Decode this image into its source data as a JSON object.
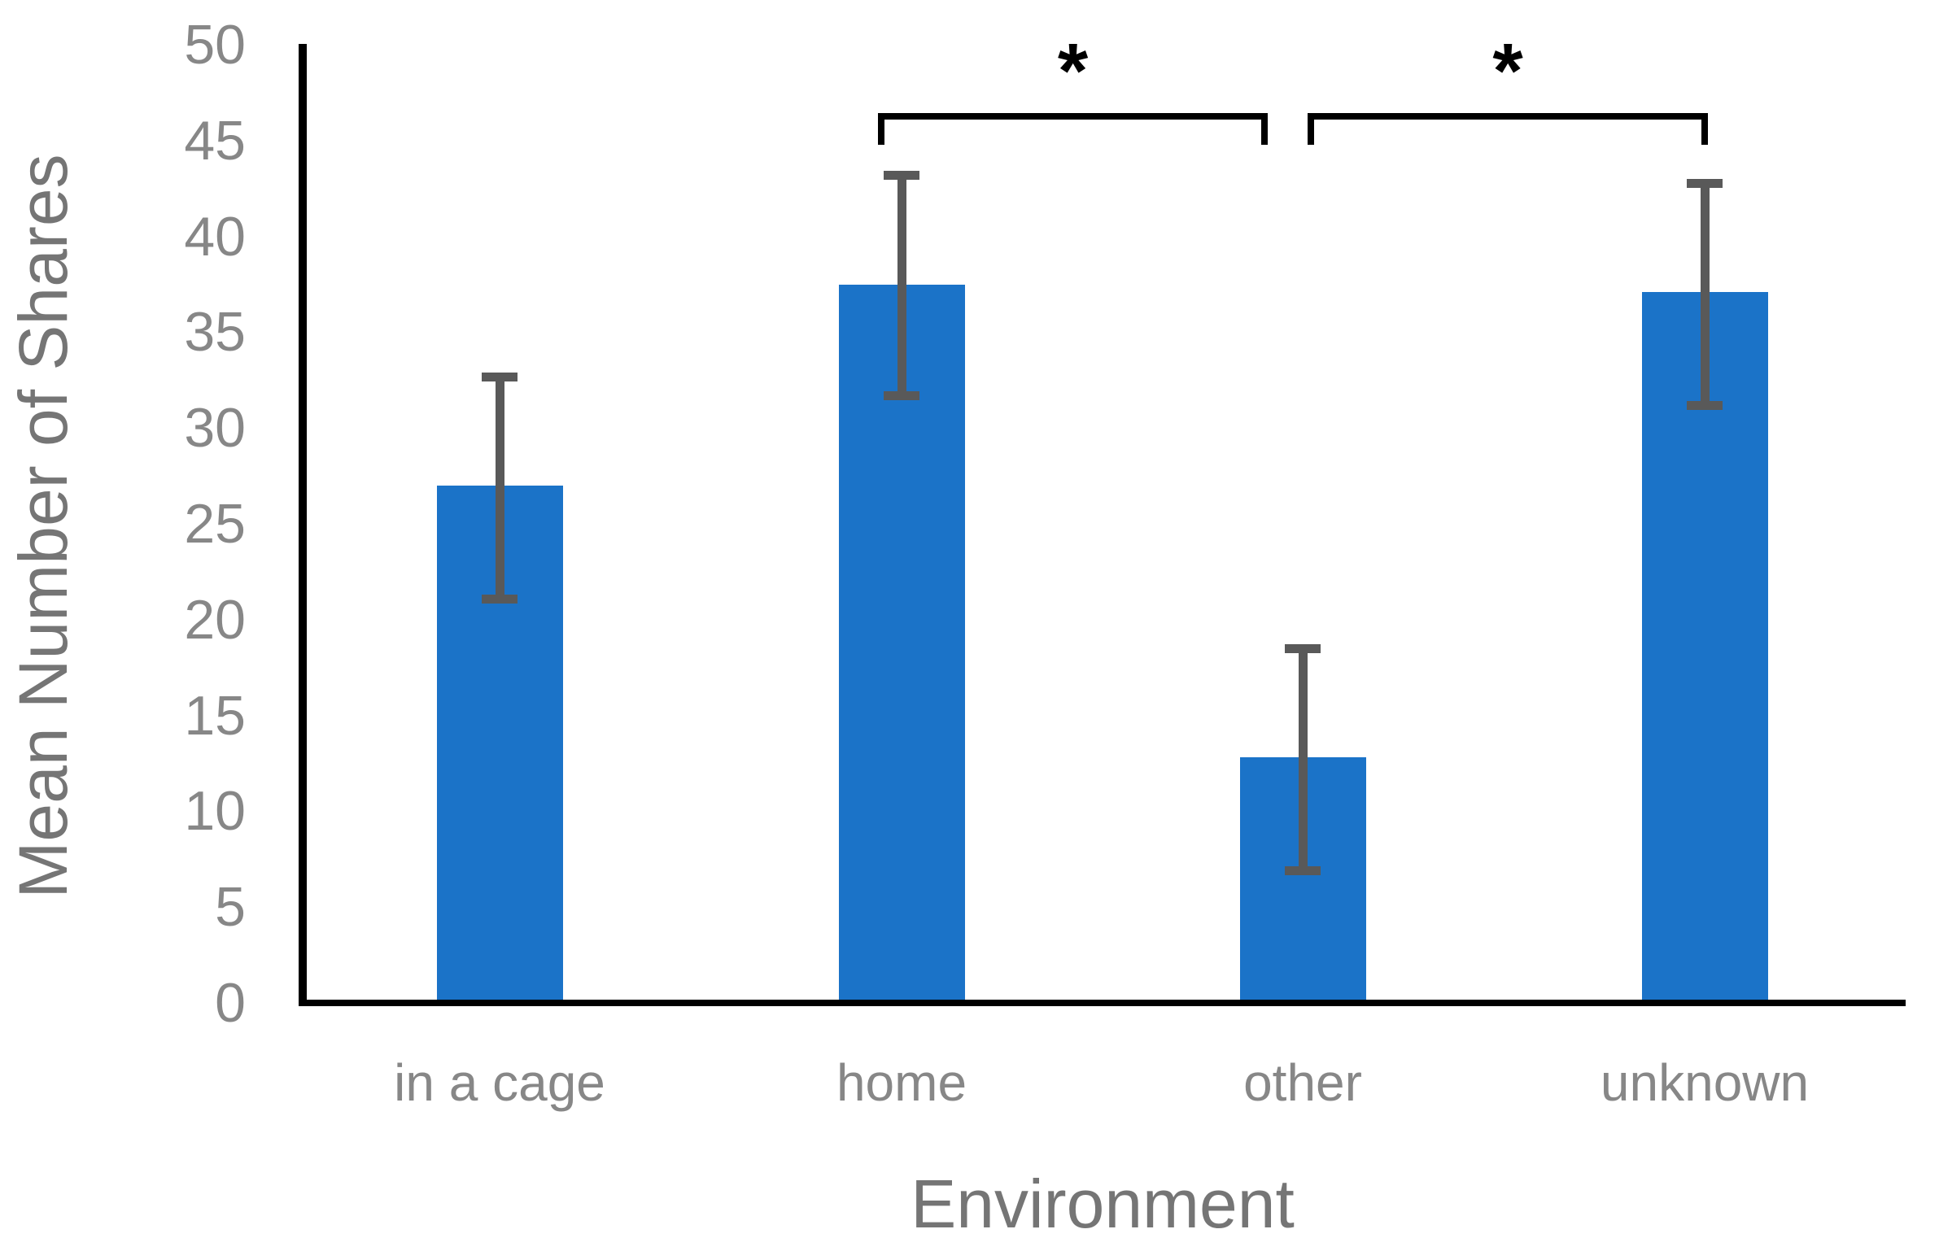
{
  "chart_data": {
    "type": "bar",
    "title": "",
    "xlabel": "Environment",
    "ylabel": "Mean Number of Shares",
    "categories": [
      "in a cage",
      "home",
      "other",
      "unknown"
    ],
    "values": [
      27,
      37.5,
      12.8,
      37.1
    ],
    "error_bars": {
      "whisker_low": [
        21.1,
        31.7,
        6.9,
        31.2
      ],
      "whisker_high": [
        32.7,
        43.2,
        18.5,
        42.8
      ]
    },
    "ylim": [
      0,
      50
    ],
    "yticks": [
      0,
      5,
      10,
      15,
      20,
      25,
      30,
      35,
      40,
      45,
      50
    ],
    "grid": false,
    "legend": "none",
    "significance_brackets": [
      {
        "between": [
          "home",
          "other"
        ],
        "label": "*"
      },
      {
        "between": [
          "other",
          "unknown"
        ],
        "label": "*"
      }
    ],
    "colors": {
      "bar_fill": "#1B73C8",
      "error_bar": "#595959",
      "axis_line": "#000000",
      "tick_label": "#878787",
      "axis_title": "#757575",
      "annotation": "#000000"
    }
  }
}
